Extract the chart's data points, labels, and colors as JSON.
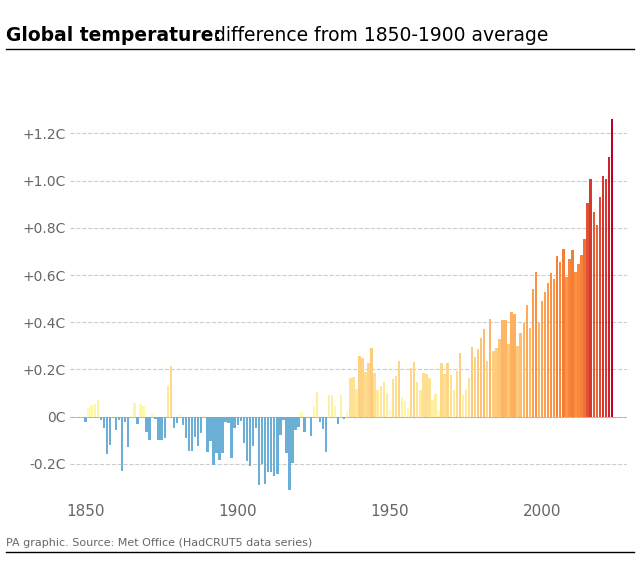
{
  "title_bold": "Global temperature:",
  "title_normal": " difference from 1850-1900 average",
  "source_text": "PA graphic. Source: Met Office (HadCRUT5 data series)",
  "years": [
    1850,
    1851,
    1852,
    1853,
    1854,
    1855,
    1856,
    1857,
    1858,
    1859,
    1860,
    1861,
    1862,
    1863,
    1864,
    1865,
    1866,
    1867,
    1868,
    1869,
    1870,
    1871,
    1872,
    1873,
    1874,
    1875,
    1876,
    1877,
    1878,
    1879,
    1880,
    1881,
    1882,
    1883,
    1884,
    1885,
    1886,
    1887,
    1888,
    1889,
    1890,
    1891,
    1892,
    1893,
    1894,
    1895,
    1896,
    1897,
    1898,
    1899,
    1900,
    1901,
    1902,
    1903,
    1904,
    1905,
    1906,
    1907,
    1908,
    1909,
    1910,
    1911,
    1912,
    1913,
    1914,
    1915,
    1916,
    1917,
    1918,
    1919,
    1920,
    1921,
    1922,
    1923,
    1924,
    1925,
    1926,
    1927,
    1928,
    1929,
    1930,
    1931,
    1932,
    1933,
    1934,
    1935,
    1936,
    1937,
    1938,
    1939,
    1940,
    1941,
    1942,
    1943,
    1944,
    1945,
    1946,
    1947,
    1948,
    1949,
    1950,
    1951,
    1952,
    1953,
    1954,
    1955,
    1956,
    1957,
    1958,
    1959,
    1960,
    1961,
    1962,
    1963,
    1964,
    1965,
    1966,
    1967,
    1968,
    1969,
    1970,
    1971,
    1972,
    1973,
    1974,
    1975,
    1976,
    1977,
    1978,
    1979,
    1980,
    1981,
    1982,
    1983,
    1984,
    1985,
    1986,
    1987,
    1988,
    1989,
    1990,
    1991,
    1992,
    1993,
    1994,
    1995,
    1996,
    1997,
    1998,
    1999,
    2000,
    2001,
    2002,
    2003,
    2004,
    2005,
    2006,
    2007,
    2008,
    2009,
    2010,
    2011,
    2012,
    2013,
    2014,
    2015,
    2016,
    2017,
    2018,
    2019,
    2020,
    2021,
    2022,
    2023
  ],
  "anomalies": [
    -0.022,
    0.039,
    0.049,
    0.055,
    0.069,
    -0.012,
    -0.046,
    -0.157,
    -0.12,
    0.002,
    -0.057,
    -0.012,
    -0.229,
    -0.023,
    -0.13,
    0.003,
    0.056,
    -0.031,
    0.054,
    0.045,
    -0.063,
    -0.097,
    0.015,
    -0.011,
    -0.1,
    -0.1,
    -0.091,
    0.129,
    0.213,
    -0.046,
    -0.025,
    0.012,
    -0.037,
    -0.091,
    -0.145,
    -0.147,
    -0.087,
    -0.126,
    -0.069,
    0.007,
    -0.148,
    -0.101,
    -0.205,
    -0.152,
    -0.182,
    -0.153,
    -0.022,
    -0.026,
    -0.173,
    -0.046,
    -0.033,
    -0.016,
    -0.111,
    -0.188,
    -0.21,
    -0.125,
    -0.048,
    -0.287,
    -0.2,
    -0.285,
    -0.235,
    -0.232,
    -0.253,
    -0.244,
    -0.078,
    -0.012,
    -0.155,
    -0.311,
    -0.197,
    -0.058,
    -0.044,
    0.022,
    -0.064,
    0.006,
    -0.083,
    0.044,
    0.105,
    -0.024,
    -0.054,
    -0.148,
    0.093,
    0.092,
    0.044,
    -0.029,
    0.093,
    -0.009,
    0.021,
    0.163,
    0.169,
    0.118,
    0.257,
    0.247,
    0.189,
    0.228,
    0.289,
    0.185,
    0.115,
    0.129,
    0.147,
    0.101,
    0.028,
    0.158,
    0.174,
    0.236,
    0.078,
    0.067,
    0.035,
    0.207,
    0.232,
    0.148,
    0.113,
    0.186,
    0.182,
    0.162,
    0.071,
    0.098,
    0.027,
    0.226,
    0.179,
    0.228,
    0.175,
    0.115,
    0.192,
    0.269,
    0.093,
    0.117,
    0.165,
    0.294,
    0.254,
    0.287,
    0.335,
    0.371,
    0.236,
    0.413,
    0.28,
    0.29,
    0.327,
    0.409,
    0.411,
    0.306,
    0.445,
    0.434,
    0.299,
    0.356,
    0.396,
    0.472,
    0.376,
    0.541,
    0.614,
    0.397,
    0.489,
    0.527,
    0.568,
    0.609,
    0.583,
    0.682,
    0.655,
    0.71,
    0.592,
    0.669,
    0.706,
    0.612,
    0.647,
    0.686,
    0.754,
    0.905,
    1.005,
    0.865,
    0.811,
    0.929,
    1.02,
    1.006,
    1.098,
    1.26
  ],
  "ylim": [
    -0.35,
    1.4
  ],
  "yticks": [
    -0.2,
    0.0,
    0.2,
    0.4,
    0.6,
    0.8,
    1.0,
    1.2
  ],
  "ytick_labels": [
    "-0.2C",
    "0C",
    "+0.2C",
    "+0.4C",
    "+0.6C",
    "+0.8C",
    "+1.0C",
    "+1.2C"
  ],
  "xticks": [
    1850,
    1900,
    1950,
    2000
  ],
  "grid_color": "#cccccc",
  "negative_color": "#6baed6",
  "bg_color": "#ffffff",
  "colormap_low": "#ffffb2",
  "colormap_mid": "#fd8d3c",
  "colormap_high": "#bd0026"
}
